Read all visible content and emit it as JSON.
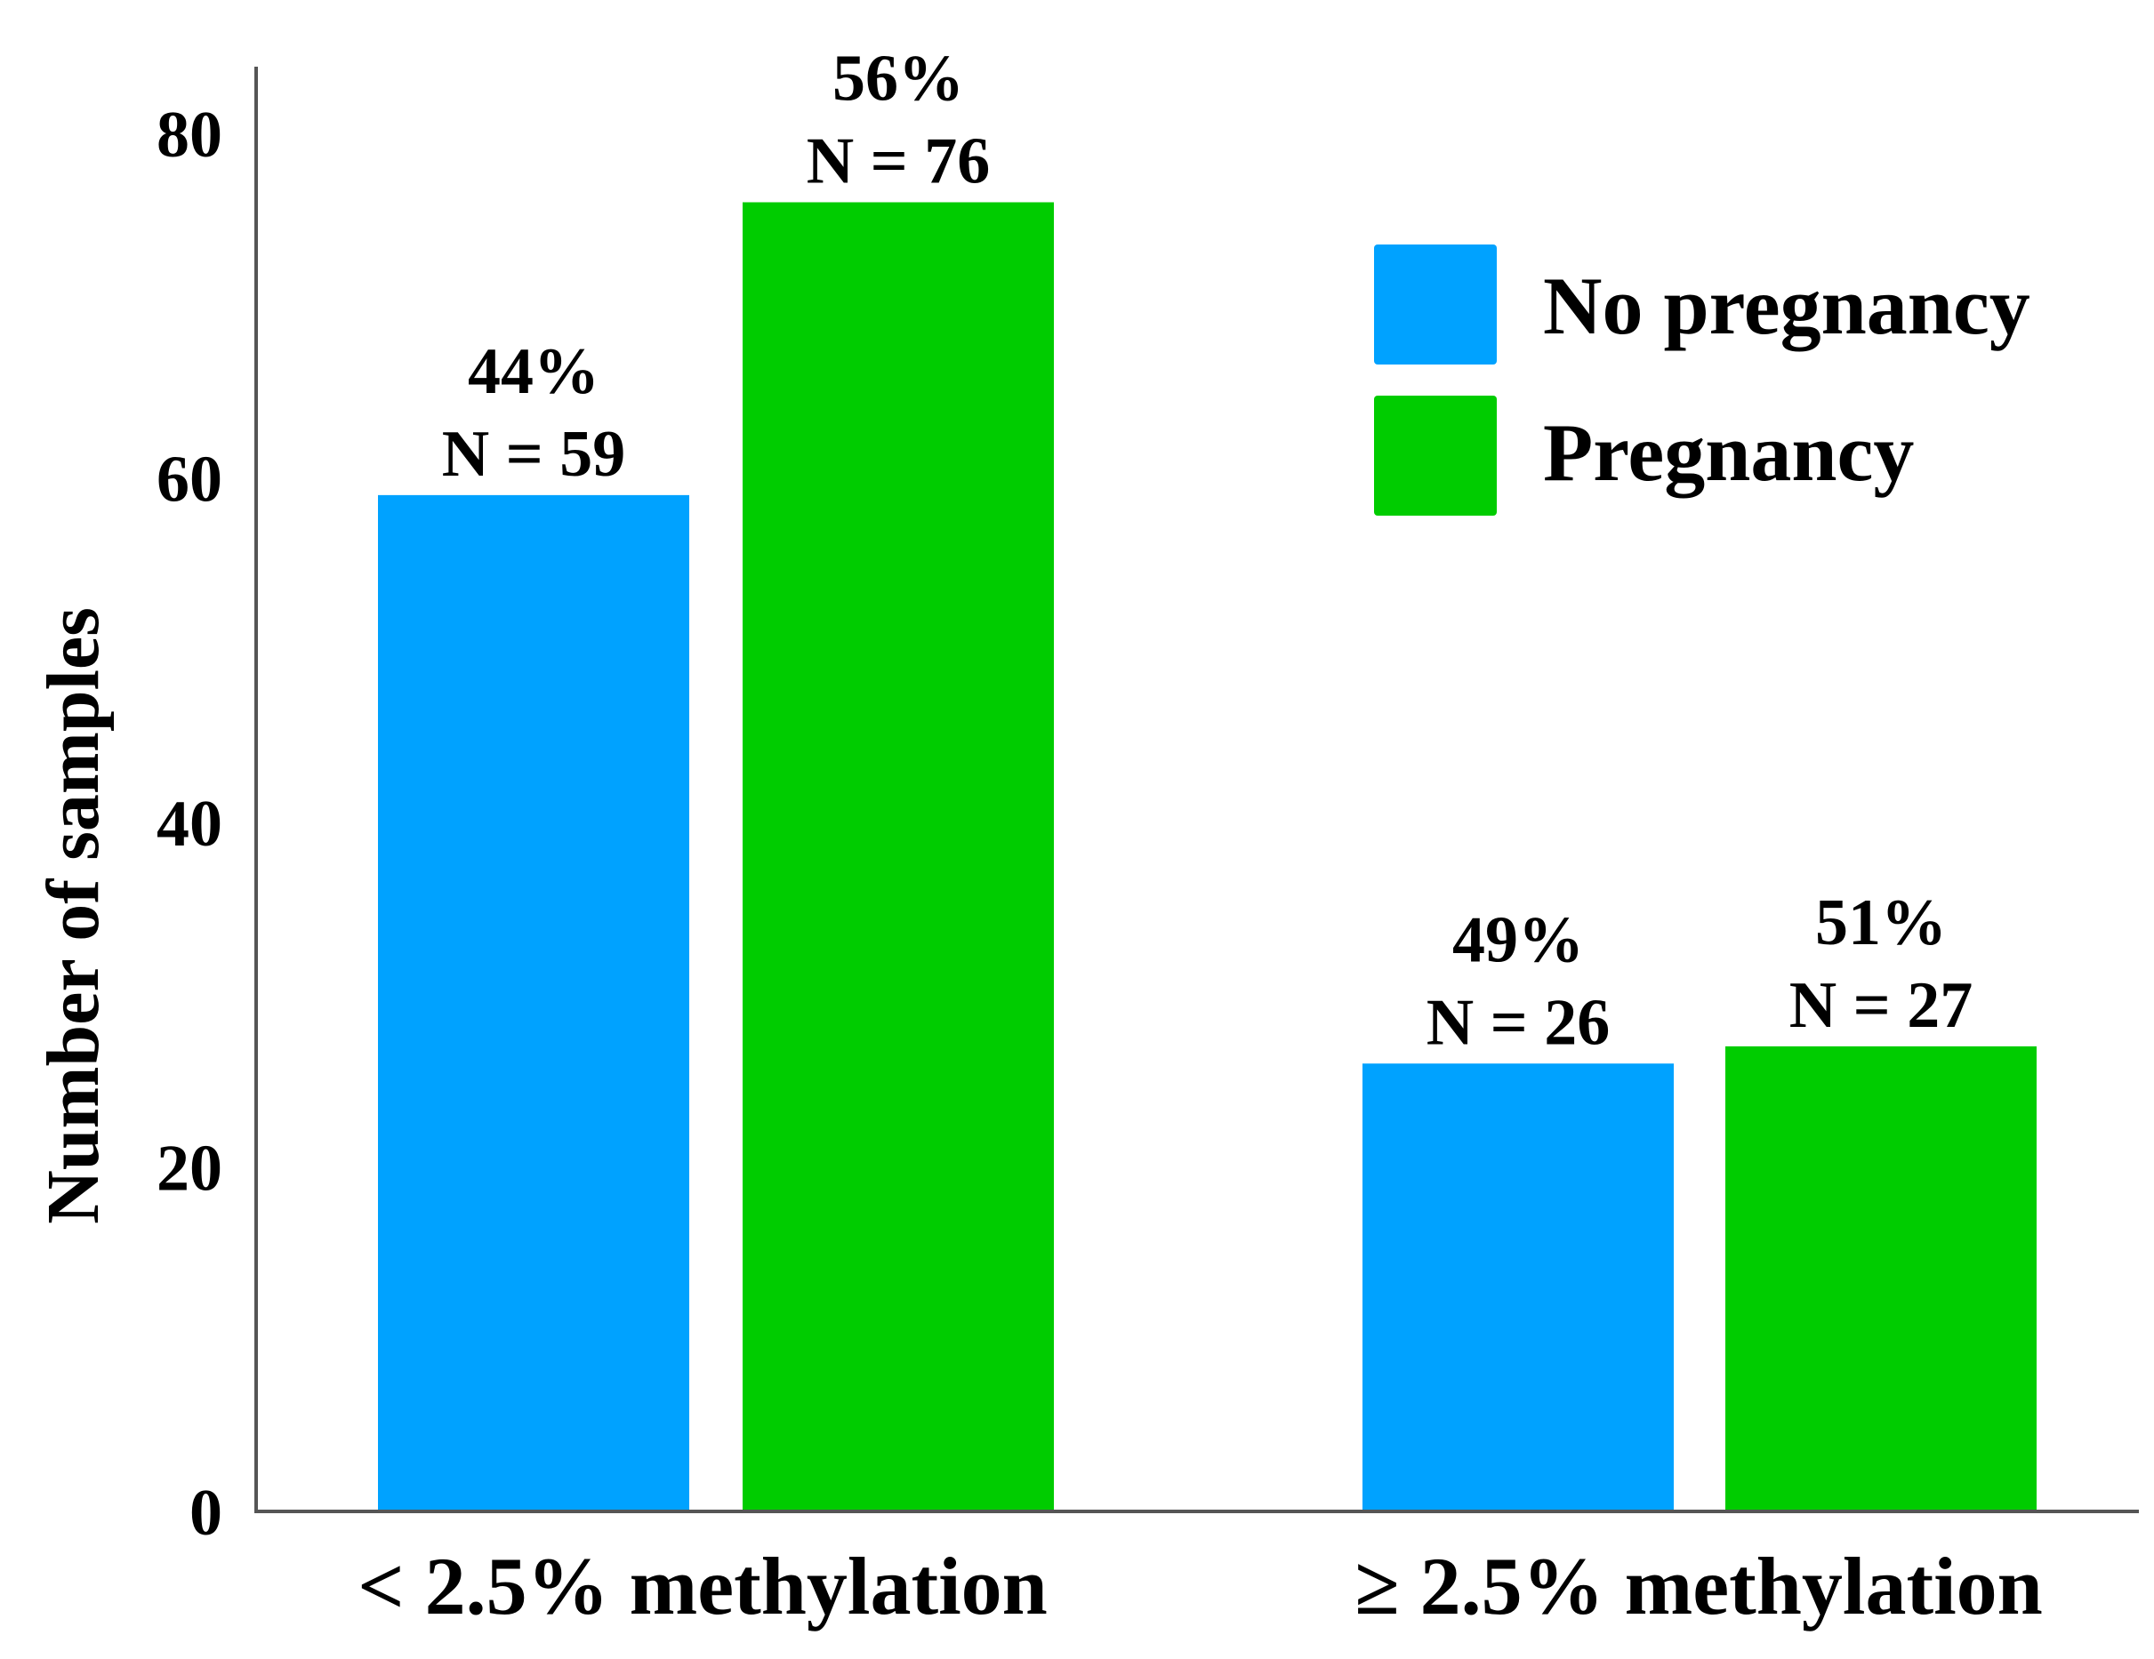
{
  "chart_data": {
    "type": "bar",
    "title": "",
    "xlabel": "",
    "ylabel": "Number of samples",
    "ylim": [
      0,
      84
    ],
    "yticks": [
      0,
      20,
      40,
      60,
      80
    ],
    "categories": [
      "< 2.5% methylation",
      "≥ 2.5% methylation"
    ],
    "series": [
      {
        "name": "No pregnancy",
        "color": "#00A2FF",
        "values": [
          59,
          26
        ],
        "percent_labels": [
          "44%",
          "49%"
        ],
        "n_labels": [
          "N = 59",
          "N = 26"
        ]
      },
      {
        "name": "Pregnancy",
        "color": "#00CC00",
        "values": [
          76,
          27
        ],
        "percent_labels": [
          "56%",
          "51%"
        ],
        "n_labels": [
          "N = 76",
          "N = 27"
        ]
      }
    ],
    "legend": {
      "position": "top-right"
    },
    "grid": false
  }
}
